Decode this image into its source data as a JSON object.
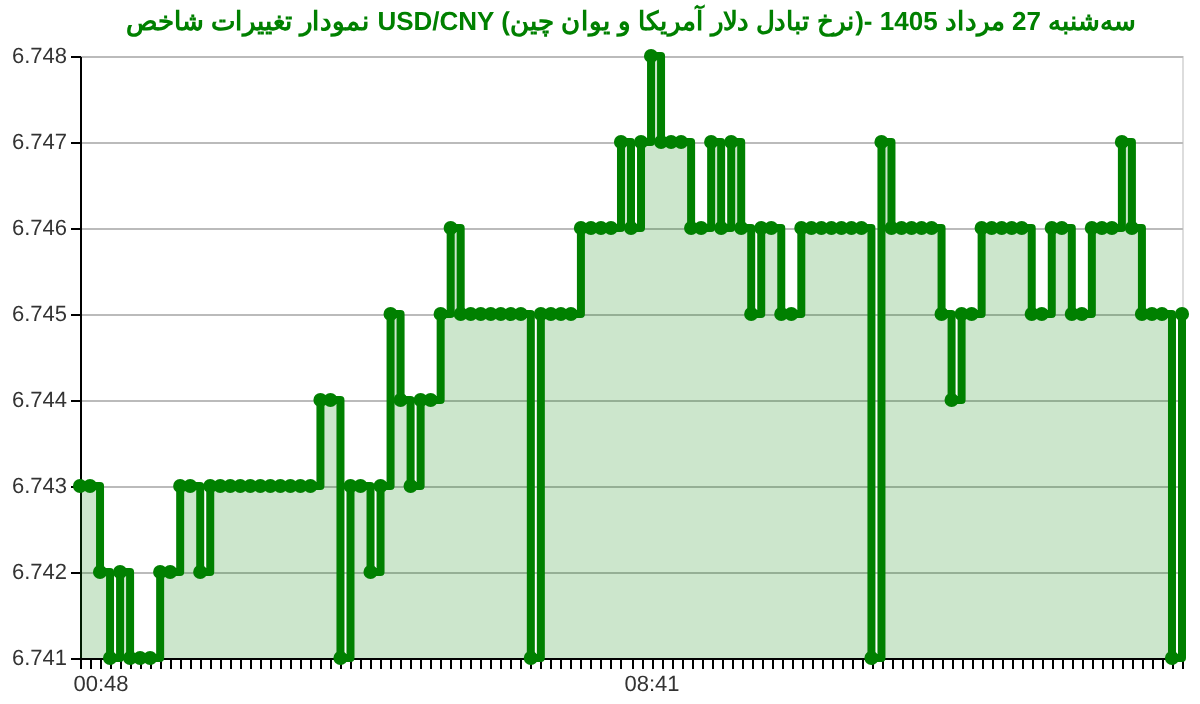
{
  "chart_data": {
    "type": "area",
    "title": "نمودار تغییرات شاخص USD/CNY (نرخ تبادل دلار آمریکا و یوان چین)- سه‌شنبه  27 مرداد 1405",
    "categories": [
      null,
      null,
      "00:48",
      null,
      null,
      null,
      null,
      null,
      null,
      null,
      null,
      null,
      null,
      null,
      null,
      null,
      null,
      null,
      null,
      null,
      null,
      null,
      null,
      null,
      null,
      null,
      null,
      null,
      null,
      null,
      null,
      null,
      null,
      null,
      null,
      null,
      null,
      null,
      null,
      null,
      null,
      null,
      null,
      null,
      null,
      null,
      null,
      null,
      null,
      null,
      null,
      null,
      null,
      null,
      null,
      null,
      null,
      "08:41",
      null,
      null,
      null,
      null,
      null,
      null,
      null,
      null,
      null,
      null,
      null,
      null,
      null,
      null,
      null,
      null,
      null,
      null,
      null,
      null,
      null,
      null,
      null,
      null,
      null,
      null,
      null,
      null,
      null,
      null,
      null,
      null,
      null,
      null,
      null,
      null,
      null,
      null,
      null,
      null,
      null,
      null,
      null,
      null,
      null,
      null,
      null,
      null,
      null,
      null,
      null,
      null,
      null
    ],
    "series": [
      {
        "color": "#008000",
        "values": [
          6.743,
          6.743,
          6.742,
          6.741,
          6.742,
          6.741,
          6.741,
          6.741,
          6.742,
          6.742,
          6.743,
          6.743,
          6.742,
          6.743,
          6.743,
          6.743,
          6.743,
          6.743,
          6.743,
          6.743,
          6.743,
          6.743,
          6.743,
          6.743,
          6.744,
          6.744,
          6.741,
          6.743,
          6.743,
          6.742,
          6.743,
          6.745,
          6.744,
          6.743,
          6.744,
          6.744,
          6.745,
          6.746,
          6.745,
          6.745,
          6.745,
          6.745,
          6.745,
          6.745,
          6.745,
          6.741,
          6.745,
          6.745,
          6.745,
          6.745,
          6.746,
          6.746,
          6.746,
          6.746,
          6.747,
          6.746,
          6.747,
          6.748,
          6.747,
          6.747,
          6.747,
          6.746,
          6.746,
          6.747,
          6.746,
          6.747,
          6.746,
          6.745,
          6.746,
          6.746,
          6.745,
          6.745,
          6.746,
          6.746,
          6.746,
          6.746,
          6.746,
          6.746,
          6.746,
          6.741,
          6.747,
          6.746,
          6.746,
          6.746,
          6.746,
          6.746,
          6.745,
          6.744,
          6.745,
          6.745,
          6.746,
          6.746,
          6.746,
          6.746,
          6.746,
          6.745,
          6.745,
          6.746,
          6.746,
          6.745,
          6.745,
          6.746,
          6.746,
          6.746,
          6.747,
          6.746,
          6.745,
          6.745,
          6.745,
          6.741,
          6.745
        ]
      }
    ],
    "ylim": [
      6.741,
      6.748
    ],
    "yticks": [
      6.741,
      6.742,
      6.743,
      6.744,
      6.745,
      6.746,
      6.747,
      6.748
    ],
    "grid": "y",
    "marker": "circle"
  }
}
